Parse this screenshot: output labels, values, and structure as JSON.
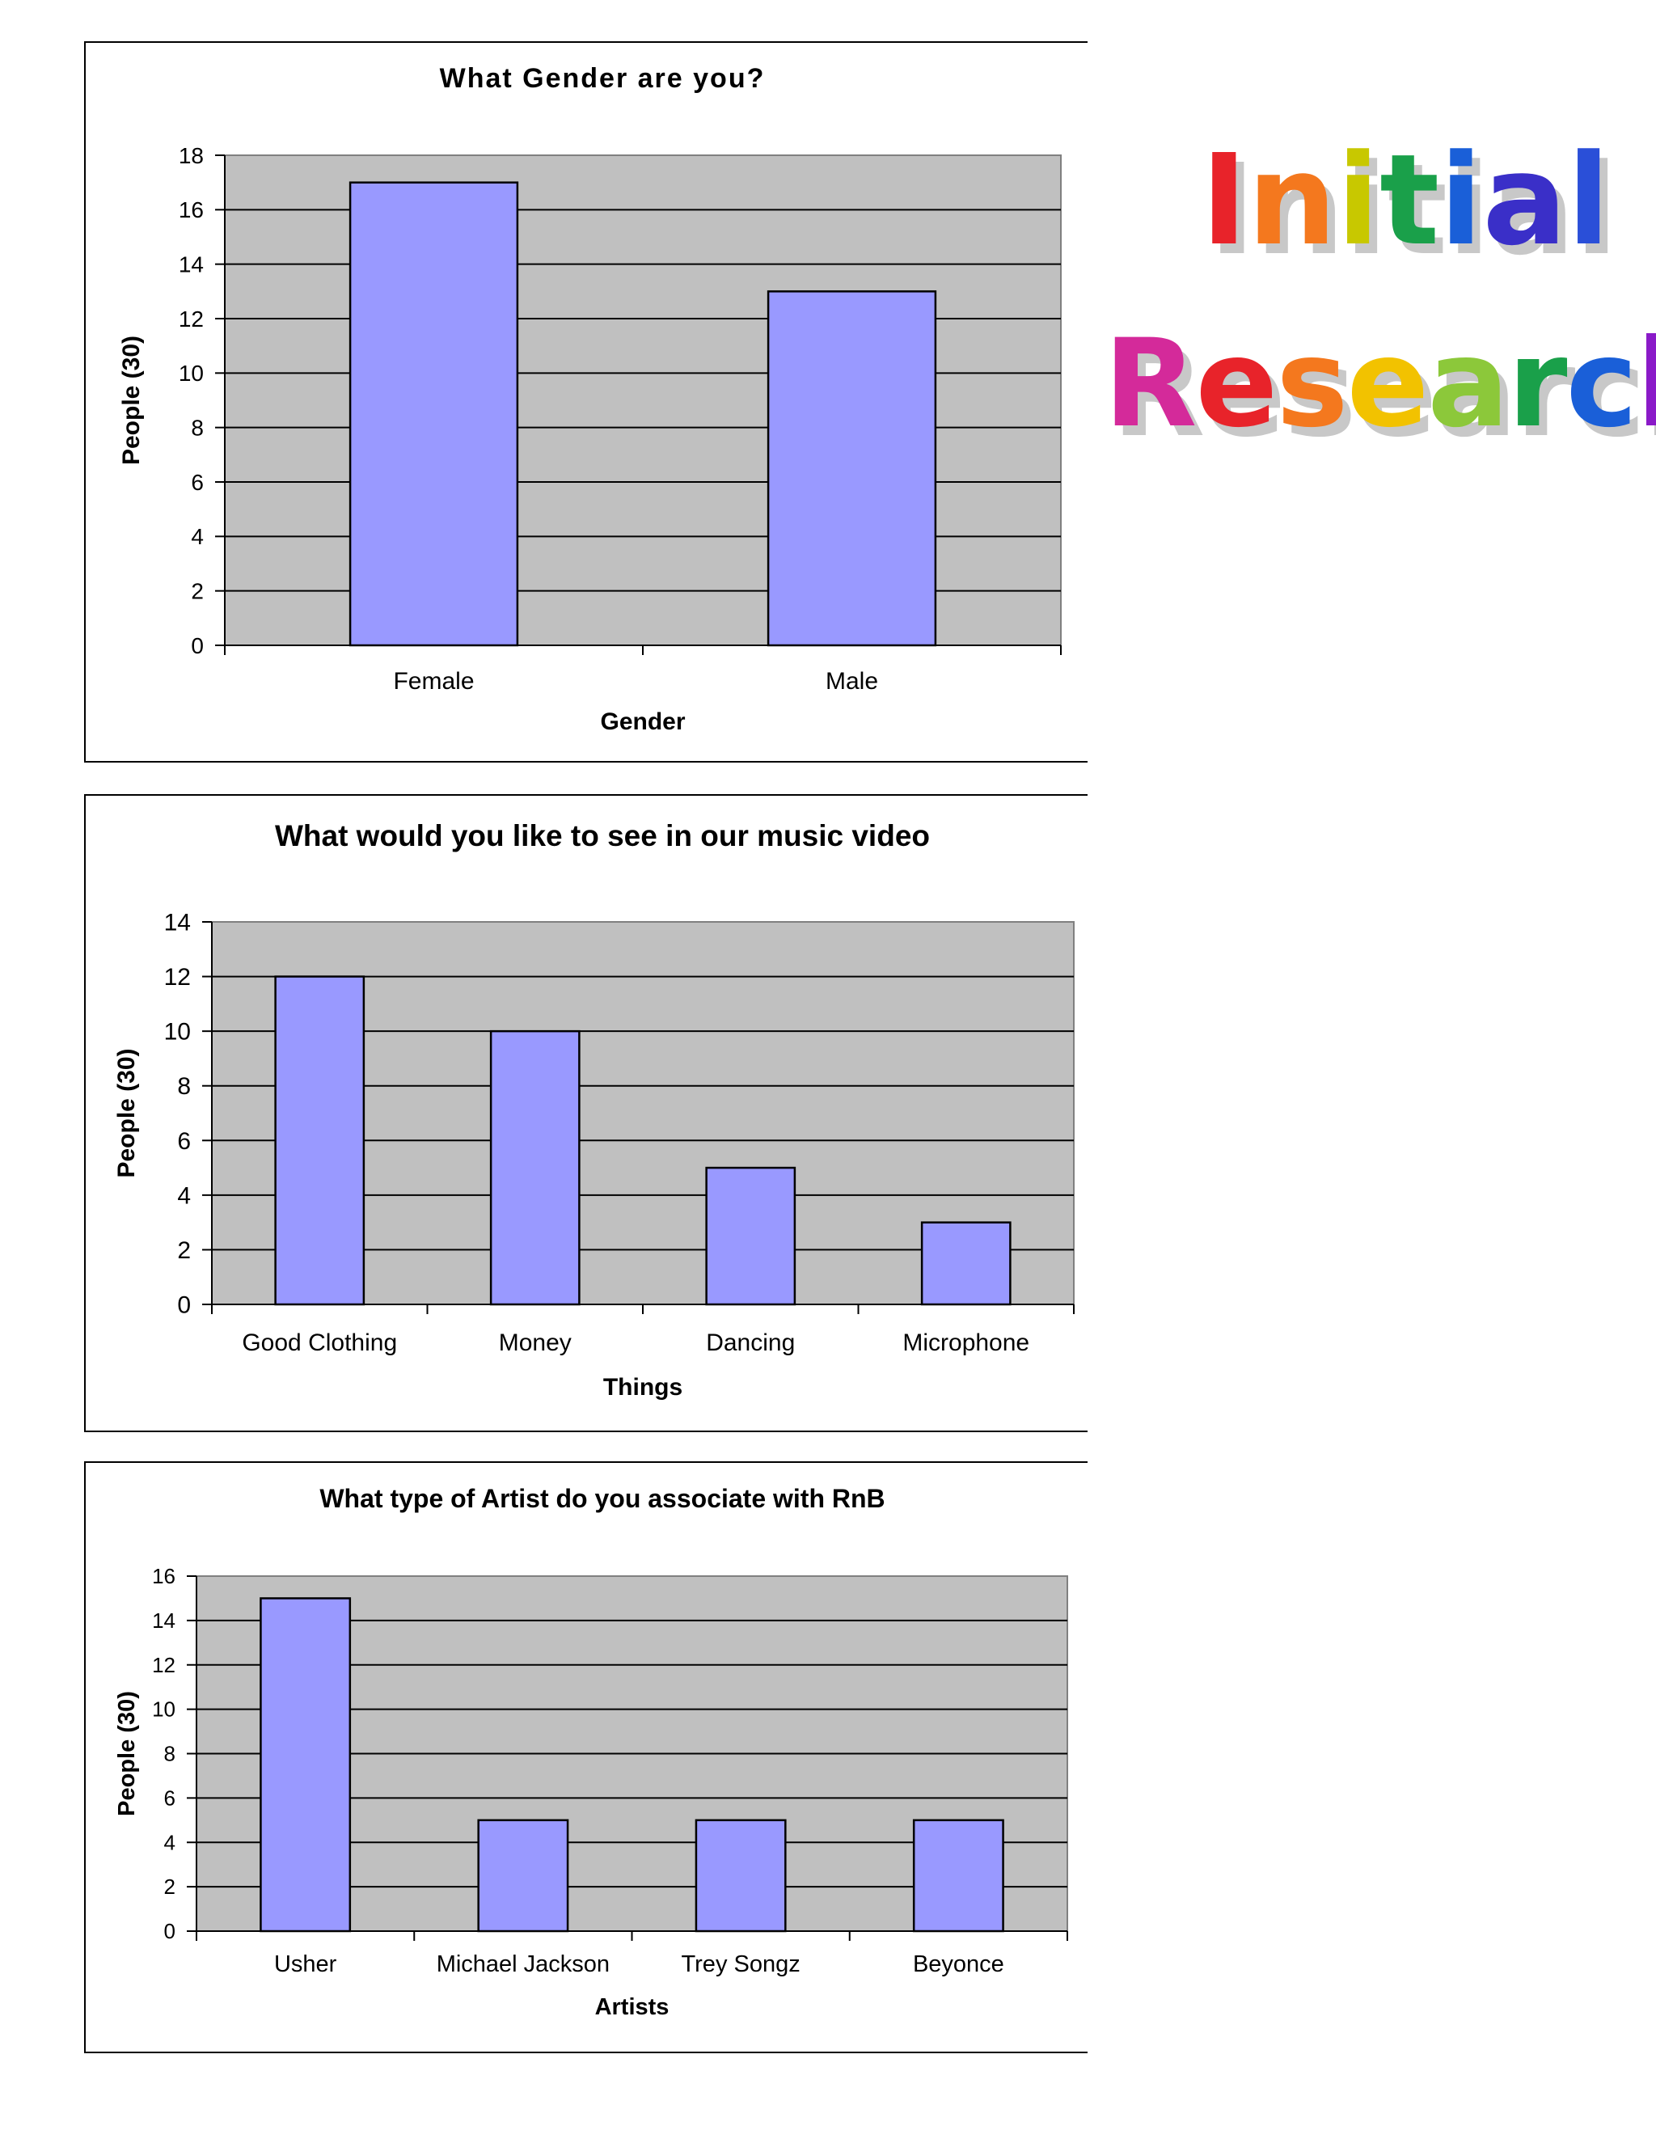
{
  "heading": {
    "line1": "Initial",
    "line2": "Research",
    "line1_colors": [
      "#e8232a",
      "#f4781e",
      "#c8c800",
      "#1aa04a",
      "#1a5fd8",
      "#3a2fc8",
      "#2a4fd8"
    ],
    "line2_colors": [
      "#d42a9a",
      "#e8232a",
      "#f4781e",
      "#f2c200",
      "#8cc83a",
      "#1aa04a",
      "#1a5fd8",
      "#8a1ac8"
    ]
  },
  "colors": {
    "bar": "#9999ff",
    "bar_stroke": "#000000",
    "plot_bg": "#c0c0c0",
    "grid": "#000000"
  },
  "chart_data": [
    {
      "type": "bar",
      "title": "What Gender are you?",
      "xlabel": "Gender",
      "ylabel": "People (30)",
      "categories": [
        "Female",
        "Male"
      ],
      "values": [
        17,
        13
      ],
      "ylim": [
        0,
        18
      ],
      "yticks": [
        0,
        2,
        4,
        6,
        8,
        10,
        12,
        14,
        16,
        18
      ],
      "grid": true,
      "legend": "none"
    },
    {
      "type": "bar",
      "title": "What would you like to see in our music video",
      "xlabel": "Things",
      "ylabel": "People (30)",
      "categories": [
        "Good Clothing",
        "Money",
        "Dancing",
        "Microphone"
      ],
      "values": [
        12,
        10,
        5,
        3
      ],
      "ylim": [
        0,
        14
      ],
      "yticks": [
        0,
        2,
        4,
        6,
        8,
        10,
        12,
        14
      ],
      "grid": true,
      "legend": "none"
    },
    {
      "type": "bar",
      "title": "What type of Artist do you associate with RnB",
      "xlabel": "Artists",
      "ylabel": "People (30)",
      "categories": [
        "Usher",
        "Michael Jackson",
        "Trey Songz",
        "Beyonce"
      ],
      "values": [
        15,
        5,
        5,
        5
      ],
      "ylim": [
        0,
        16
      ],
      "yticks": [
        0,
        2,
        4,
        6,
        8,
        10,
        12,
        14,
        16
      ],
      "grid": true,
      "legend": "none"
    }
  ]
}
